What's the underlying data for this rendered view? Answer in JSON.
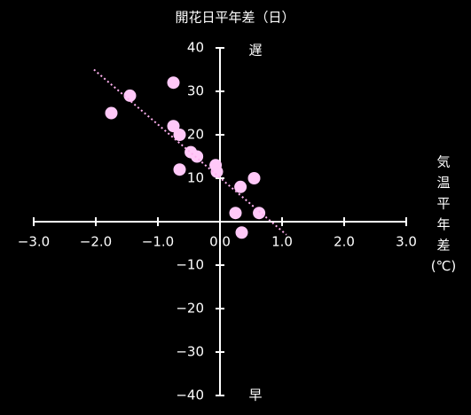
{
  "chart_data": {
    "type": "scatter",
    "title": "開花日平年差（日）",
    "x_label": [
      "気",
      "温",
      "平",
      "年",
      "差",
      "(℃)"
    ],
    "top_label": "遅",
    "bottom_label": "早",
    "x": [
      -1.75,
      -1.45,
      -0.75,
      -0.75,
      -0.65,
      -0.47,
      -0.37,
      -0.65,
      -0.07,
      -0.05,
      0.55,
      0.33,
      0.25,
      0.63,
      0.35
    ],
    "y": [
      25,
      29,
      32,
      22,
      20,
      16,
      15,
      12,
      13,
      11.5,
      10,
      8,
      2,
      2,
      -2.5
    ],
    "color": "#ffc8f8",
    "trendline": {
      "x": [
        -2.03,
        1.07
      ],
      "y": [
        35,
        -3
      ],
      "color": "#ffb0f0"
    },
    "xlim": [
      -3,
      3
    ],
    "ylim": [
      -40,
      40
    ],
    "xticks": [
      {
        "value": -3,
        "label": "−3.0"
      },
      {
        "value": -2,
        "label": "−2.0"
      },
      {
        "value": -1,
        "label": "−1.0"
      },
      {
        "value": 0,
        "label": "0.0"
      },
      {
        "value": 1,
        "label": "1.0"
      },
      {
        "value": 2,
        "label": "2.0"
      },
      {
        "value": 3,
        "label": "3.0"
      }
    ],
    "yticks": [
      {
        "value": -40,
        "label": "−40"
      },
      {
        "value": -30,
        "label": "−30"
      },
      {
        "value": -20,
        "label": "−20"
      },
      {
        "value": -10,
        "label": "−10"
      },
      10,
      20,
      30,
      40
    ]
  }
}
